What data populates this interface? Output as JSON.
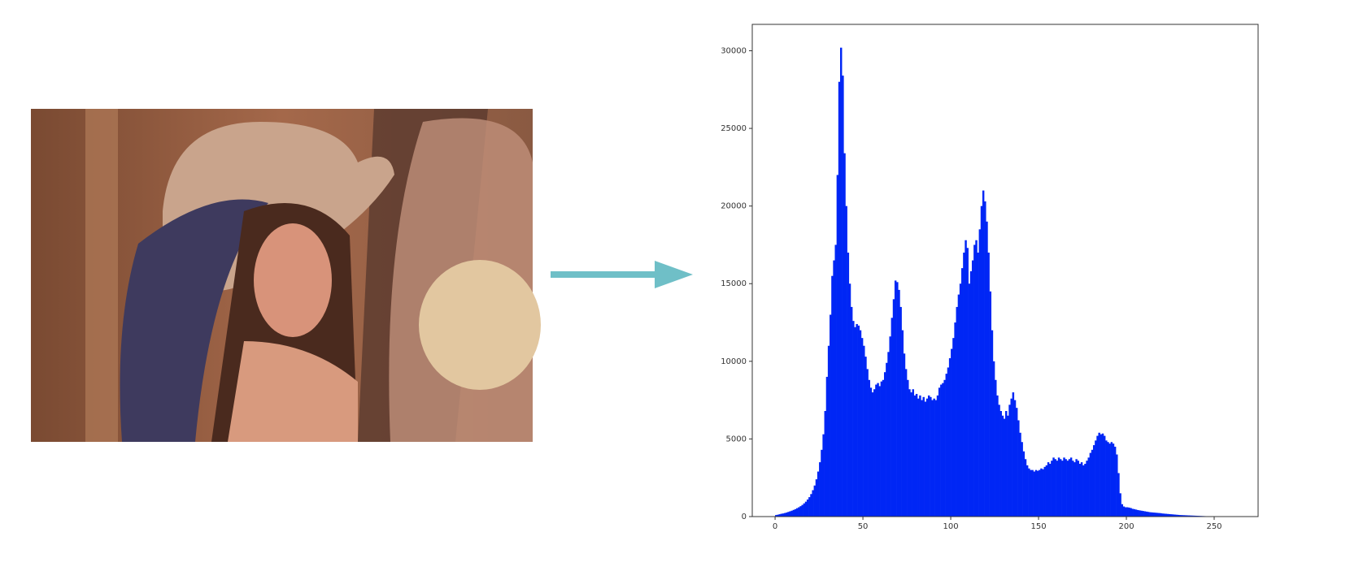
{
  "chart_data": {
    "type": "histogram",
    "color": "#0026f5",
    "bins": [
      0,
      1,
      2,
      3,
      4,
      5,
      6,
      7,
      8,
      9,
      10,
      11,
      12,
      13,
      14,
      15,
      16,
      17,
      18,
      19,
      20,
      21,
      22,
      23,
      24,
      25,
      26,
      27,
      28,
      29,
      30,
      31,
      32,
      33,
      34,
      35,
      36,
      37,
      38,
      39,
      40,
      41,
      42,
      43,
      44,
      45,
      46,
      47,
      48,
      49,
      50,
      51,
      52,
      53,
      54,
      55,
      56,
      57,
      58,
      59,
      60,
      61,
      62,
      63,
      64,
      65,
      66,
      67,
      68,
      69,
      70,
      71,
      72,
      73,
      74,
      75,
      76,
      77,
      78,
      79,
      80,
      81,
      82,
      83,
      84,
      85,
      86,
      87,
      88,
      89,
      90,
      91,
      92,
      93,
      94,
      95,
      96,
      97,
      98,
      99,
      100,
      101,
      102,
      103,
      104,
      105,
      106,
      107,
      108,
      109,
      110,
      111,
      112,
      113,
      114,
      115,
      116,
      117,
      118,
      119,
      120,
      121,
      122,
      123,
      124,
      125,
      126,
      127,
      128,
      129,
      130,
      131,
      132,
      133,
      134,
      135,
      136,
      137,
      138,
      139,
      140,
      141,
      142,
      143,
      144,
      145,
      146,
      147,
      148,
      149,
      150,
      151,
      152,
      153,
      154,
      155,
      156,
      157,
      158,
      159,
      160,
      161,
      162,
      163,
      164,
      165,
      166,
      167,
      168,
      169,
      170,
      171,
      172,
      173,
      174,
      175,
      176,
      177,
      178,
      179,
      180,
      181,
      182,
      183,
      184,
      185,
      186,
      187,
      188,
      189,
      190,
      191,
      192,
      193,
      194,
      195,
      196,
      197,
      198,
      199,
      200,
      201,
      202,
      203,
      204,
      205,
      206,
      207,
      208,
      209,
      210,
      211,
      212,
      213,
      214,
      215,
      216,
      217,
      218,
      219,
      220,
      221,
      222,
      223,
      224,
      225,
      226,
      227,
      228,
      229,
      230,
      231,
      232,
      233,
      234,
      235,
      236,
      237,
      238,
      239,
      240,
      241,
      242,
      243,
      244,
      245,
      246,
      247,
      248,
      249,
      250,
      251,
      252,
      253,
      254,
      255,
      256
    ],
    "values": [
      100,
      120,
      150,
      180,
      200,
      230,
      260,
      300,
      340,
      380,
      430,
      480,
      540,
      600,
      670,
      750,
      850,
      960,
      1100,
      1250,
      1450,
      1700,
      2000,
      2400,
      2900,
      3500,
      4300,
      5300,
      6800,
      9000,
      11000,
      13000,
      15500,
      16500,
      17500,
      22000,
      28000,
      30200,
      28400,
      23400,
      20000,
      17000,
      15000,
      13500,
      12600,
      12200,
      12400,
      12300,
      12000,
      11500,
      11000,
      10300,
      9500,
      8800,
      8300,
      8000,
      8200,
      8500,
      8600,
      8400,
      8700,
      8800,
      9300,
      9900,
      10600,
      11600,
      12800,
      14000,
      15200,
      15100,
      14600,
      13500,
      12000,
      10500,
      9500,
      8800,
      8200,
      8000,
      8200,
      7800,
      7900,
      7600,
      7800,
      7500,
      7700,
      7400,
      7600,
      7800,
      7700,
      7500,
      7600,
      7500,
      7800,
      8300,
      8500,
      8600,
      8800,
      9200,
      9600,
      10200,
      10800,
      11500,
      12500,
      13500,
      14300,
      15000,
      16000,
      17000,
      17800,
      17300,
      15000,
      15800,
      16500,
      17500,
      17800,
      17000,
      18500,
      20000,
      21000,
      20300,
      19000,
      17000,
      14500,
      12000,
      10000,
      8800,
      7800,
      7200,
      6800,
      6500,
      6300,
      6800,
      6500,
      7200,
      7600,
      8000,
      7500,
      7000,
      6200,
      5400,
      4800,
      4200,
      3700,
      3300,
      3100,
      3000,
      3000,
      2900,
      3000,
      2950,
      3000,
      3100,
      3050,
      3200,
      3300,
      3500,
      3400,
      3600,
      3800,
      3700,
      3600,
      3800,
      3700,
      3600,
      3800,
      3700,
      3600,
      3700,
      3800,
      3600,
      3500,
      3700,
      3600,
      3400,
      3500,
      3300,
      3400,
      3600,
      3800,
      4100,
      4300,
      4600,
      4900,
      5200,
      5400,
      5300,
      5350,
      5200,
      4900,
      4800,
      4700,
      4800,
      4700,
      4500,
      4000,
      2800,
      1500,
      800,
      650,
      600,
      600,
      580,
      550,
      500,
      480,
      450,
      420,
      400,
      380,
      360,
      340,
      320,
      300,
      280,
      270,
      260,
      250,
      240,
      230,
      220,
      200,
      190,
      180,
      170,
      160,
      150,
      140,
      130,
      120,
      110,
      100,
      95,
      90,
      85,
      80,
      75,
      70,
      65,
      60,
      55,
      50,
      45,
      40,
      35,
      30,
      25,
      20,
      15,
      10,
      5,
      0,
      0,
      0,
      0,
      0,
      0
    ],
    "xlim": [
      -13,
      275
    ],
    "xticks": [
      0,
      50,
      100,
      150,
      200,
      250
    ],
    "ylim": [
      0,
      31700
    ],
    "yticks": [
      0,
      5000,
      10000,
      15000,
      20000,
      25000,
      30000
    ]
  }
}
